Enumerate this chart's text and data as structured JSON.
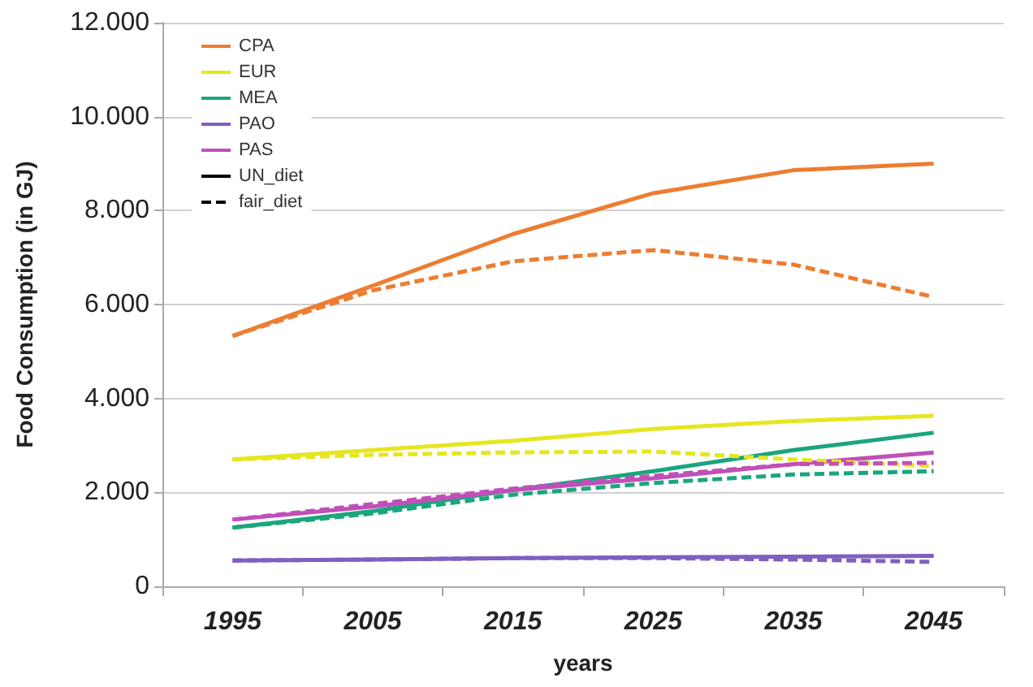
{
  "chart_data": {
    "type": "line",
    "xlabel": "years",
    "ylabel": "Food Consumption (in GJ)",
    "categories": [
      "1995",
      "2005",
      "2015",
      "2025",
      "2035",
      "2045"
    ],
    "series": [
      {
        "name": "CPA",
        "color": "#ed7d31",
        "line_style": "solid",
        "values": [
          5330,
          6400,
          7500,
          8370,
          8860,
          9000
        ]
      },
      {
        "name": "EUR",
        "color": "#e6e620",
        "line_style": "solid",
        "values": [
          2700,
          2900,
          3100,
          3350,
          3520,
          3630
        ]
      },
      {
        "name": "MEA",
        "color": "#1aa67e",
        "line_style": "solid",
        "values": [
          1250,
          1600,
          2050,
          2450,
          2900,
          3270
        ]
      },
      {
        "name": "PAO",
        "color": "#7f5fbf",
        "line_style": "solid",
        "values": [
          550,
          570,
          600,
          620,
          630,
          650
        ]
      },
      {
        "name": "PAS",
        "color": "#c04fb8",
        "line_style": "solid",
        "values": [
          1420,
          1700,
          2050,
          2300,
          2600,
          2850
        ]
      },
      {
        "name": "UN_diet",
        "color": "#000000",
        "line_style": "solid",
        "values": [
          null,
          null,
          null,
          null,
          null,
          null
        ]
      },
      {
        "name": "fair_diet",
        "color": "#000000",
        "line_style": "dashed",
        "values": [
          null,
          null,
          null,
          null,
          null,
          null
        ]
      },
      {
        "color": "#ed7d31",
        "line_style": "dashed",
        "values": [
          5330,
          6300,
          6920,
          7160,
          6850,
          6160
        ]
      },
      {
        "color": "#e6e620",
        "line_style": "dashed",
        "values": [
          2700,
          2800,
          2850,
          2870,
          2700,
          2560
        ]
      },
      {
        "color": "#1aa67e",
        "line_style": "dashed",
        "values": [
          1250,
          1550,
          1950,
          2200,
          2380,
          2450
        ]
      },
      {
        "color": "#7f5fbf",
        "line_style": "dashed",
        "values": [
          550,
          570,
          600,
          600,
          570,
          520
        ]
      },
      {
        "color": "#c04fb8",
        "line_style": "dashed",
        "values": [
          1420,
          1750,
          2080,
          2350,
          2600,
          2630
        ]
      }
    ],
    "ylim": [
      0,
      12000
    ],
    "yticks": [
      {
        "value": 0,
        "label": "0"
      },
      {
        "value": 2000,
        "label": "2.000"
      },
      {
        "value": 4000,
        "label": "4.000"
      },
      {
        "value": 6000,
        "label": "6.000"
      },
      {
        "value": 8000,
        "label": "8.000"
      },
      {
        "value": 10000,
        "label": "10.000"
      },
      {
        "value": 12000,
        "label": "12.000"
      }
    ],
    "grid": "y",
    "legend": "top left",
    "marker": "none"
  }
}
